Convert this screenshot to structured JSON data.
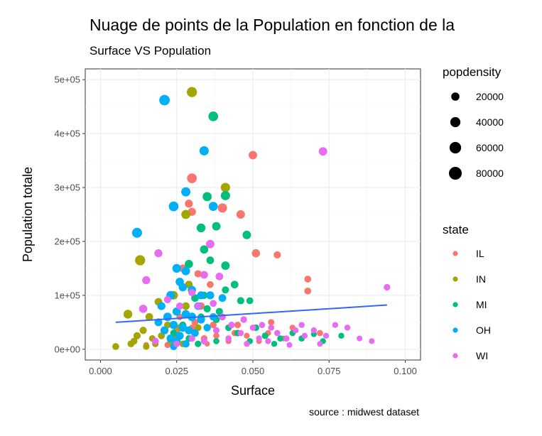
{
  "chart_data": {
    "type": "scatter",
    "title": "Nuage de points de la Population en fonction de la",
    "subtitle": "Surface VS Population",
    "caption": "source : midwest dataset",
    "xlabel": "Surface",
    "ylabel": "Population totale",
    "xlim": [
      -0.005,
      0.105
    ],
    "ylim": [
      -20000,
      520000
    ],
    "xticks": [
      0.0,
      0.025,
      0.05,
      0.075,
      0.1
    ],
    "xtick_labels": [
      "0.000",
      "0.025",
      "0.050",
      "0.075",
      "0.100"
    ],
    "yticks": [
      0,
      100000,
      200000,
      300000,
      400000,
      500000
    ],
    "ytick_labels": [
      "0e+00",
      "1e+05",
      "2e+05",
      "3e+05",
      "4e+05",
      "5e+05"
    ],
    "grid": true,
    "legend_position": "right",
    "size_legend": {
      "title": "popdensity",
      "entries": [
        {
          "label": "20000",
          "value": 20000
        },
        {
          "label": "40000",
          "value": 40000
        },
        {
          "label": "60000",
          "value": 60000
        },
        {
          "label": "80000",
          "value": 80000
        }
      ]
    },
    "color_legend": {
      "title": "state",
      "entries": [
        {
          "label": "IL",
          "color": "#F8766D"
        },
        {
          "label": "IN",
          "color": "#A3A500"
        },
        {
          "label": "MI",
          "color": "#00BF7D"
        },
        {
          "label": "OH",
          "color": "#00B0F6"
        },
        {
          "label": "WI",
          "color": "#E76BF3"
        }
      ]
    },
    "trend_line": {
      "color": "#3366FF",
      "x": [
        0.005,
        0.094
      ],
      "y": [
        50000,
        82000
      ]
    },
    "series": [
      {
        "name": "IL",
        "color": "#F8766D",
        "points": [
          [
            0.03,
            317000,
            35000
          ],
          [
            0.05,
            360000,
            22000
          ],
          [
            0.04,
            262000,
            30000
          ],
          [
            0.046,
            250000,
            22000
          ],
          [
            0.029,
            270000,
            18000
          ],
          [
            0.03,
            255000,
            18000
          ],
          [
            0.051,
            178000,
            20000
          ],
          [
            0.058,
            175000,
            12000
          ],
          [
            0.068,
            130000,
            10000
          ],
          [
            0.068,
            108000,
            10000
          ],
          [
            0.027,
            150000,
            15000
          ],
          [
            0.032,
            140000,
            12000
          ],
          [
            0.036,
            120000,
            10000
          ],
          [
            0.04,
            60000,
            8000
          ],
          [
            0.045,
            45000,
            8000
          ],
          [
            0.055,
            30000,
            5000
          ],
          [
            0.06,
            20000,
            4000
          ],
          [
            0.063,
            40000,
            5000
          ],
          [
            0.072,
            30000,
            6000
          ],
          [
            0.038,
            25000,
            6000
          ],
          [
            0.042,
            15000,
            5000
          ],
          [
            0.034,
            20000,
            8000
          ],
          [
            0.028,
            10000,
            5000
          ],
          [
            0.022,
            8000,
            6000
          ],
          [
            0.018,
            12000,
            5000
          ],
          [
            0.015,
            8000,
            4000
          ],
          [
            0.025,
            35000,
            10000
          ],
          [
            0.048,
            25000,
            5000
          ],
          [
            0.052,
            15000,
            4000
          ],
          [
            0.044,
            30000,
            6000
          ],
          [
            0.031,
            50000,
            10000
          ],
          [
            0.037,
            45000,
            9000
          ],
          [
            0.026,
            60000,
            8000
          ],
          [
            0.033,
            80000,
            14000
          ],
          [
            0.056,
            50000,
            7000
          ],
          [
            0.03,
            40000,
            6000
          ],
          [
            0.035,
            10000,
            3000
          ]
        ]
      },
      {
        "name": "IN",
        "color": "#A3A500",
        "points": [
          [
            0.03,
            477000,
            40000
          ],
          [
            0.041,
            300000,
            30000
          ],
          [
            0.028,
            250000,
            28000
          ],
          [
            0.013,
            165000,
            40000
          ],
          [
            0.009,
            65000,
            25000
          ],
          [
            0.024,
            100000,
            22000
          ],
          [
            0.019,
            88000,
            15000
          ],
          [
            0.016,
            60000,
            15000
          ],
          [
            0.014,
            35000,
            12000
          ],
          [
            0.012,
            25000,
            12000
          ],
          [
            0.011,
            15000,
            10000
          ],
          [
            0.005,
            5000,
            10000
          ],
          [
            0.015,
            5000,
            8000
          ],
          [
            0.018,
            10000,
            8000
          ],
          [
            0.02,
            25000,
            10000
          ],
          [
            0.023,
            15000,
            8000
          ],
          [
            0.026,
            40000,
            12000
          ],
          [
            0.028,
            80000,
            15000
          ],
          [
            0.029,
            120000,
            15000
          ],
          [
            0.03,
            110000,
            12000
          ],
          [
            0.032,
            40000,
            10000
          ],
          [
            0.022,
            45000,
            10000
          ],
          [
            0.025,
            20000,
            8000
          ],
          [
            0.017,
            20000,
            8000
          ],
          [
            0.021,
            35000,
            10000
          ],
          [
            0.024,
            5000,
            6000
          ],
          [
            0.027,
            10000,
            8000
          ],
          [
            0.01,
            10000,
            10000
          ]
        ]
      },
      {
        "name": "MI",
        "color": "#00BF7D",
        "points": [
          [
            0.037,
            432000,
            35000
          ],
          [
            0.041,
            285000,
            30000
          ],
          [
            0.035,
            283000,
            28000
          ],
          [
            0.048,
            212000,
            22000
          ],
          [
            0.033,
            225000,
            25000
          ],
          [
            0.038,
            228000,
            22000
          ],
          [
            0.034,
            185000,
            20000
          ],
          [
            0.041,
            155000,
            22000
          ],
          [
            0.029,
            158000,
            20000
          ],
          [
            0.036,
            165000,
            15000
          ],
          [
            0.031,
            95000,
            15000
          ],
          [
            0.034,
            100000,
            12000
          ],
          [
            0.041,
            110000,
            12000
          ],
          [
            0.044,
            120000,
            15000
          ],
          [
            0.046,
            90000,
            12000
          ],
          [
            0.049,
            90000,
            10000
          ],
          [
            0.033,
            60000,
            10000
          ],
          [
            0.038,
            55000,
            10000
          ],
          [
            0.042,
            40000,
            8000
          ],
          [
            0.045,
            30000,
            8000
          ],
          [
            0.051,
            40000,
            8000
          ],
          [
            0.054,
            25000,
            8000
          ],
          [
            0.059,
            20000,
            6000
          ],
          [
            0.063,
            30000,
            6000
          ],
          [
            0.066,
            20000,
            6000
          ],
          [
            0.07,
            28000,
            5000
          ],
          [
            0.073,
            15000,
            5000
          ],
          [
            0.079,
            25000,
            5000
          ],
          [
            0.029,
            20000,
            8000
          ],
          [
            0.032,
            10000,
            8000
          ],
          [
            0.038,
            15000,
            6000
          ],
          [
            0.024,
            30000,
            10000
          ],
          [
            0.027,
            45000,
            10000
          ],
          [
            0.035,
            75000,
            12000
          ],
          [
            0.039,
            70000,
            12000
          ],
          [
            0.057,
            10000,
            5000
          ],
          [
            0.049,
            15000,
            6000
          ]
        ]
      },
      {
        "name": "OH",
        "color": "#00B0F6",
        "points": [
          [
            0.021,
            462000,
            45000
          ],
          [
            0.012,
            216000,
            38000
          ],
          [
            0.024,
            265000,
            35000
          ],
          [
            0.028,
            292000,
            30000
          ],
          [
            0.034,
            368000,
            30000
          ],
          [
            0.037,
            265000,
            28000
          ],
          [
            0.025,
            150000,
            25000
          ],
          [
            0.028,
            145000,
            22000
          ],
          [
            0.026,
            125000,
            20000
          ],
          [
            0.023,
            100000,
            22000
          ],
          [
            0.027,
            115000,
            20000
          ],
          [
            0.03,
            110000,
            20000
          ],
          [
            0.033,
            100000,
            18000
          ],
          [
            0.036,
            100000,
            18000
          ],
          [
            0.04,
            95000,
            16000
          ],
          [
            0.02,
            80000,
            18000
          ],
          [
            0.022,
            60000,
            22000
          ],
          [
            0.025,
            70000,
            20000
          ],
          [
            0.028,
            65000,
            20000
          ],
          [
            0.03,
            60000,
            22000
          ],
          [
            0.033,
            55000,
            18000
          ],
          [
            0.024,
            45000,
            20000
          ],
          [
            0.027,
            40000,
            20000
          ],
          [
            0.029,
            35000,
            18000
          ],
          [
            0.031,
            30000,
            15000
          ],
          [
            0.026,
            25000,
            18000
          ],
          [
            0.023,
            20000,
            18000
          ],
          [
            0.021,
            35000,
            18000
          ],
          [
            0.025,
            15000,
            16000
          ],
          [
            0.028,
            10000,
            14000
          ],
          [
            0.035,
            40000,
            14000
          ],
          [
            0.037,
            60000,
            14000
          ],
          [
            0.019,
            50000,
            16000
          ],
          [
            0.032,
            80000,
            16000
          ],
          [
            0.024,
            5000,
            12000
          ]
        ]
      },
      {
        "name": "WI",
        "color": "#E76BF3",
        "points": [
          [
            0.073,
            367000,
            22000
          ],
          [
            0.036,
            195000,
            22000
          ],
          [
            0.019,
            178000,
            18000
          ],
          [
            0.015,
            128000,
            18000
          ],
          [
            0.034,
            138000,
            15000
          ],
          [
            0.039,
            135000,
            15000
          ],
          [
            0.094,
            115000,
            8000
          ],
          [
            0.014,
            75000,
            20000
          ],
          [
            0.022,
            92000,
            12000
          ],
          [
            0.026,
            80000,
            12000
          ],
          [
            0.03,
            105000,
            12000
          ],
          [
            0.032,
            80000,
            10000
          ],
          [
            0.037,
            85000,
            10000
          ],
          [
            0.04,
            60000,
            10000
          ],
          [
            0.043,
            45000,
            8000
          ],
          [
            0.047,
            55000,
            8000
          ],
          [
            0.05,
            40000,
            6000
          ],
          [
            0.053,
            45000,
            6000
          ],
          [
            0.056,
            40000,
            6000
          ],
          [
            0.058,
            30000,
            6000
          ],
          [
            0.061,
            20000,
            6000
          ],
          [
            0.064,
            35000,
            5000
          ],
          [
            0.067,
            25000,
            5000
          ],
          [
            0.07,
            35000,
            5000
          ],
          [
            0.074,
            25000,
            5000
          ],
          [
            0.077,
            45000,
            5000
          ],
          [
            0.081,
            40000,
            5000
          ],
          [
            0.085,
            20000,
            4000
          ],
          [
            0.089,
            15000,
            4000
          ],
          [
            0.066,
            45000,
            5000
          ],
          [
            0.052,
            20000,
            5000
          ],
          [
            0.046,
            30000,
            6000
          ],
          [
            0.042,
            20000,
            6000
          ],
          [
            0.038,
            35000,
            8000
          ],
          [
            0.034,
            15000,
            8000
          ],
          [
            0.03,
            20000,
            8000
          ],
          [
            0.025,
            10000,
            8000
          ],
          [
            0.018,
            15000,
            10000
          ],
          [
            0.048,
            10000,
            5000
          ],
          [
            0.055,
            15000,
            5000
          ],
          [
            0.072,
            10000,
            4000
          ],
          [
            0.062,
            8000,
            4000
          ]
        ]
      }
    ]
  }
}
